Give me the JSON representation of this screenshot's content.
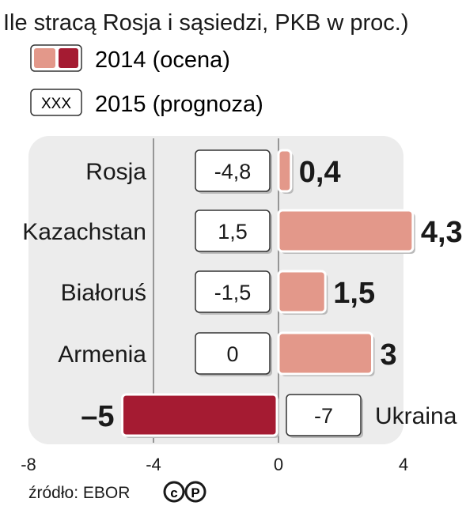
{
  "chart_data": {
    "type": "bar",
    "title": "Ile stracą Rosja i sąsiedzi, PKB w proc.)",
    "legend": [
      {
        "label": "2014 (ocena)",
        "swatch": "two-tone"
      },
      {
        "label": "2015 (prognoza)",
        "swatch_text": "XXX"
      }
    ],
    "categories": [
      "Rosja",
      "Kazachstan",
      "Białoruś",
      "Armenia",
      "Ukraina"
    ],
    "series": [
      {
        "name": "2014 (ocena)",
        "values": [
          0.4,
          4.3,
          1.5,
          3,
          -5
        ],
        "labels": [
          "0,4",
          "4,3",
          "1,5",
          "3",
          "–5"
        ]
      },
      {
        "name": "2015 (prognoza)",
        "values": [
          -4.8,
          1.5,
          -1.5,
          0,
          -7
        ],
        "labels": [
          "-4,8",
          "1,5",
          "-1,5",
          "0",
          "-7"
        ]
      }
    ],
    "xlim": [
      -8,
      4.4
    ],
    "xticks": [
      -8,
      -4,
      0,
      4
    ],
    "xtick_labels": [
      "-8",
      "-4",
      "0",
      "4"
    ],
    "source": "źródło: EBOR",
    "colors": {
      "positive": "#e3988a",
      "negative": "#a51b32",
      "panel": "#ececec",
      "box_border": "#333333"
    }
  }
}
